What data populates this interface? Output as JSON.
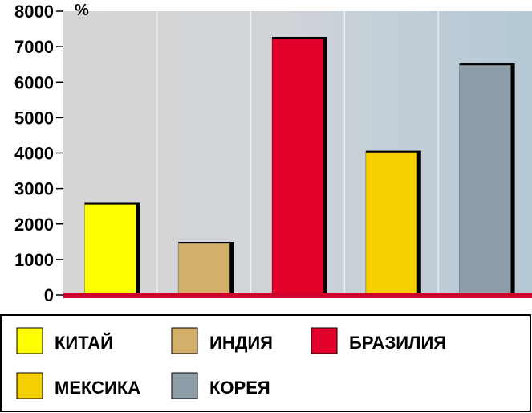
{
  "chart_data": {
    "type": "bar",
    "unit": "%",
    "categories": [
      "КИТАЙ",
      "ИНДИЯ",
      "БРАЗИЛИЯ",
      "МЕКСИКА",
      "КОРЕЯ"
    ],
    "values": [
      2550,
      1450,
      7230,
      4020,
      6480
    ],
    "colors": [
      "#ffff00",
      "#d2b06a",
      "#e0002a",
      "#f5d000",
      "#8e9ea8"
    ],
    "ylim": [
      0,
      8000
    ],
    "yticks": [
      "0",
      "1000",
      "2000",
      "3000",
      "4000",
      "5000",
      "6000",
      "7000",
      "8000"
    ],
    "grid": true,
    "legend_placement": "bottom",
    "title": "",
    "xlabel": "",
    "ylabel": ""
  }
}
